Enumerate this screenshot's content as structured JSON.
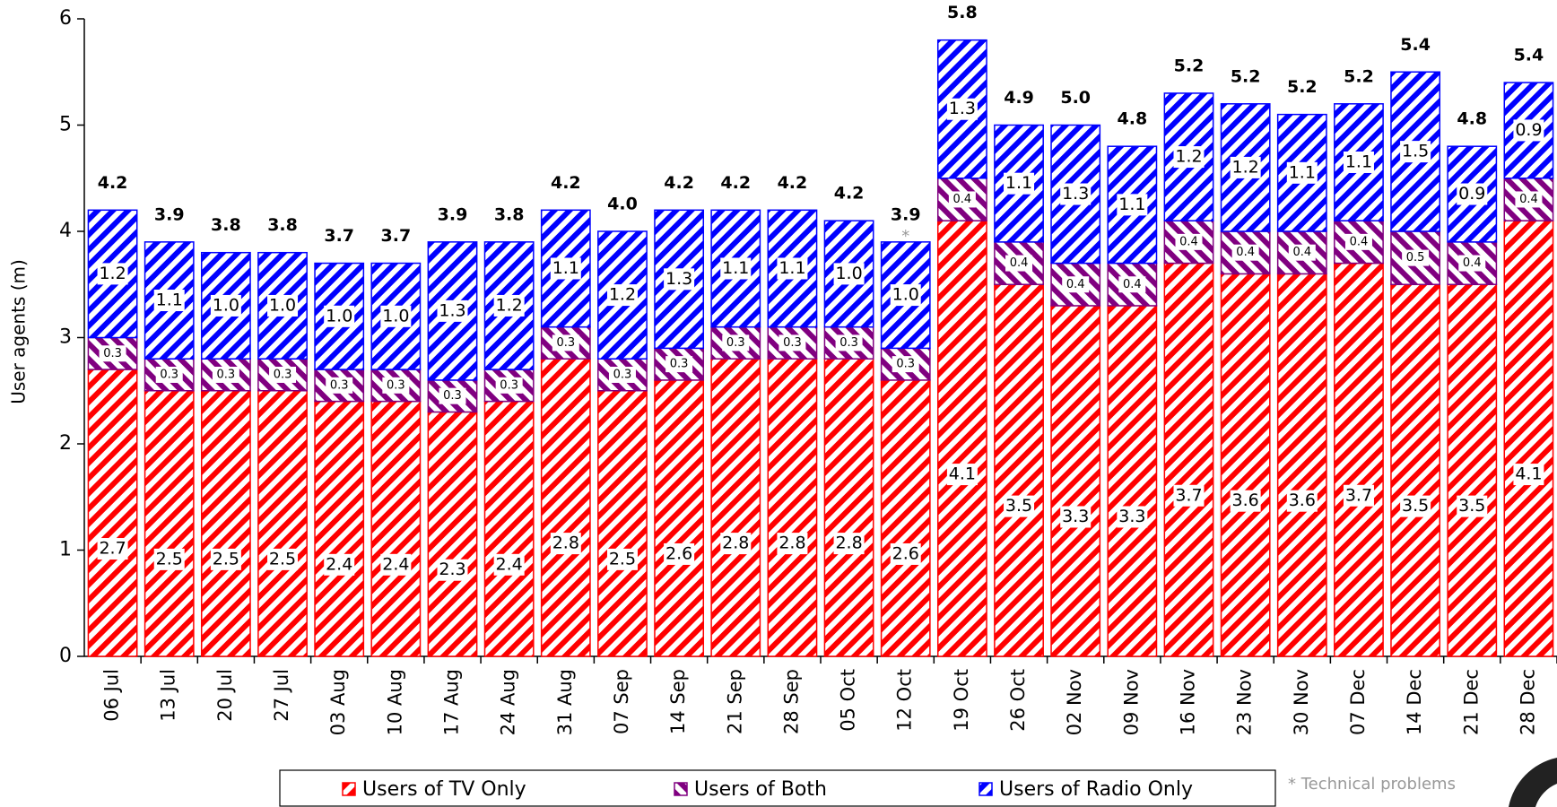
{
  "chart_data": {
    "type": "stacked_bar",
    "y_label": "User agents (m)",
    "categories": [
      "06 Jul",
      "13 Jul",
      "20 Jul",
      "27 Jul",
      "03 Aug",
      "10 Aug",
      "17 Aug",
      "24 Aug",
      "31 Aug",
      "07 Sep",
      "14 Sep",
      "21 Sep",
      "28 Sep",
      "05 Oct",
      "12 Oct",
      "19 Oct",
      "26 Oct",
      "02 Nov",
      "09 Nov",
      "16 Nov",
      "23 Nov",
      "30 Nov",
      "07 Dec",
      "14 Dec",
      "21 Dec",
      "28 Dec"
    ],
    "series": [
      {
        "name": "Users of TV Only",
        "color": "#ff0000",
        "values": [
          2.7,
          2.5,
          2.5,
          2.5,
          2.4,
          2.4,
          2.3,
          2.4,
          2.8,
          2.5,
          2.6,
          2.8,
          2.8,
          2.8,
          2.6,
          4.1,
          3.5,
          3.3,
          3.3,
          3.7,
          3.6,
          3.6,
          3.7,
          3.5,
          3.5,
          4.1
        ],
        "value_labels": [
          "2.7",
          "2.5",
          "2.5",
          "2.5",
          "2.4",
          "2.4",
          "2.3",
          "2.4",
          "2.8",
          "2.5",
          "2.6",
          "2.8",
          "2.8",
          "2.8",
          "2.6",
          "4.1",
          "3.5",
          "3.3",
          "3.3",
          "3.7",
          "3.6",
          "3.6",
          "3.7",
          "3.5",
          "3.5",
          "4.1"
        ]
      },
      {
        "name": "Users of Both",
        "color": "#800080",
        "values": [
          0.3,
          0.3,
          0.3,
          0.3,
          0.3,
          0.3,
          0.3,
          0.3,
          0.3,
          0.3,
          0.3,
          0.3,
          0.3,
          0.3,
          0.3,
          0.4,
          0.4,
          0.4,
          0.4,
          0.4,
          0.4,
          0.4,
          0.4,
          0.5,
          0.4,
          0.4
        ],
        "value_labels": [
          "0.3",
          "0.3",
          "0.3",
          "0.3",
          "0.3",
          "0.3",
          "0.3",
          "0.3",
          "0.3",
          "0.3",
          "0.3",
          "0.3",
          "0.3",
          "0.3",
          "0.3",
          "0.4",
          "0.4",
          "0.4",
          "0.4",
          "0.4",
          "0.4",
          "0.4",
          "0.4",
          "0.5",
          "0.4",
          "0.4"
        ]
      },
      {
        "name": "Users of Radio Only",
        "color": "#0000ff",
        "values": [
          1.2,
          1.1,
          1.0,
          1.0,
          1.0,
          1.0,
          1.3,
          1.2,
          1.1,
          1.2,
          1.3,
          1.1,
          1.1,
          1.0,
          1.0,
          1.3,
          1.1,
          1.3,
          1.1,
          1.2,
          1.2,
          1.1,
          1.1,
          1.5,
          0.9,
          0.9
        ],
        "value_labels": [
          "1.2",
          "1.1",
          "1.0",
          "1.0",
          "1.0",
          "1.0",
          "1.3",
          "1.2",
          "1.1",
          "1.2",
          "1.3",
          "1.1",
          "1.1",
          "1.0",
          "1.0",
          "1.3",
          "1.1",
          "1.3",
          "1.1",
          "1.2",
          "1.2",
          "1.1",
          "1.1",
          "1.5",
          "0.9",
          "0.9"
        ]
      }
    ],
    "totals": {
      "values": [
        4.2,
        3.9,
        3.8,
        3.8,
        3.7,
        3.7,
        3.9,
        3.8,
        4.2,
        4.0,
        4.2,
        4.2,
        4.2,
        4.2,
        3.9,
        5.8,
        4.9,
        5.0,
        4.8,
        5.2,
        5.2,
        5.2,
        5.2,
        5.4,
        4.8,
        5.4
      ],
      "value_labels": [
        "4.2",
        "3.9",
        "3.8",
        "3.8",
        "3.7",
        "3.7",
        "3.9",
        "3.8",
        "4.2",
        "4.0",
        "4.2",
        "4.2",
        "4.2",
        "4.2",
        "3.9",
        "5.8",
        "4.9",
        "5.0",
        "4.8",
        "5.2",
        "5.2",
        "5.2",
        "5.2",
        "5.4",
        "4.8",
        "5.4"
      ]
    },
    "ylim": [
      0,
      6
    ],
    "yticks": [
      0,
      1,
      2,
      3,
      4,
      5,
      6
    ],
    "note": {
      "marker": "*",
      "category": "12 Oct",
      "text": "* Technical problems"
    }
  }
}
